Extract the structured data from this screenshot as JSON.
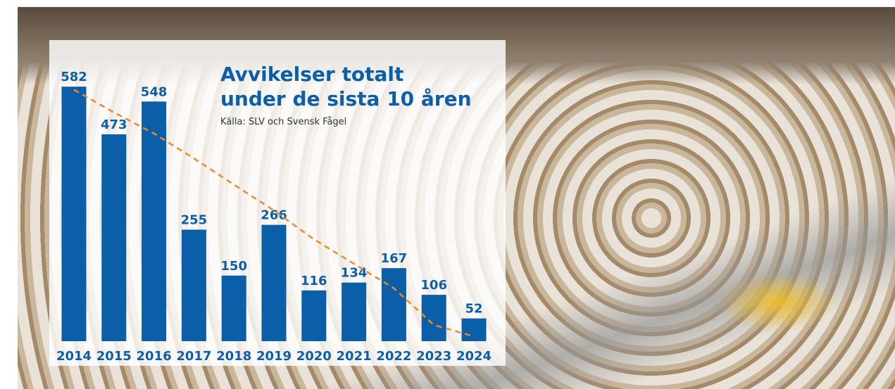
{
  "chart_data": {
    "type": "bar",
    "title": "Avvikelser totalt under de sista 10 åren",
    "subtitle": "Källa: SLV och Svensk Fågel",
    "categories": [
      "2014",
      "2015",
      "2016",
      "2017",
      "2018",
      "2019",
      "2020",
      "2021",
      "2022",
      "2023",
      "2024"
    ],
    "values": [
      582,
      473,
      548,
      255,
      150,
      266,
      116,
      134,
      167,
      106,
      52
    ],
    "color": "#0b5fa8",
    "trend": {
      "values": [
        575,
        523,
        475,
        418,
        358,
        299,
        233,
        177,
        121,
        37,
        11
      ],
      "color": "#f0892a"
    },
    "ylim": [
      0,
      600
    ]
  }
}
